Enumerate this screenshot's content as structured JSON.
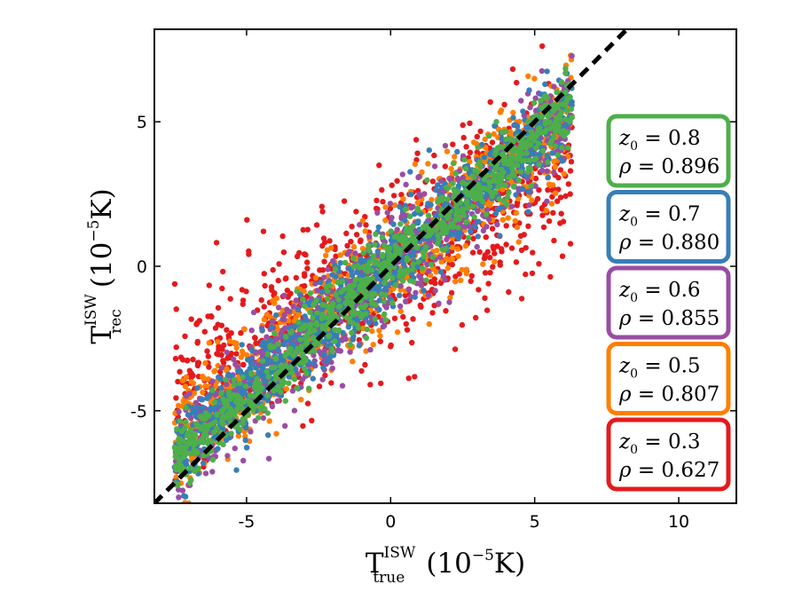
{
  "chart_data": {
    "type": "scatter",
    "title": "",
    "xlabel": {
      "base": "T",
      "sup": "ISW",
      "sub": "true",
      "unit": "(10",
      "unit_exp": "−5",
      "unit_end": "K)"
    },
    "ylabel": {
      "base": "T",
      "sup": "ISW",
      "sub": "rec",
      "unit": "(10",
      "unit_exp": "−5",
      "unit_end": "K)"
    },
    "xlim": [
      -8.2,
      12
    ],
    "ylim": [
      -8.2,
      8.2
    ],
    "xticks": [
      -5,
      0,
      5,
      10
    ],
    "xtick_labels": [
      "-5",
      "0",
      "5",
      "10"
    ],
    "yticks": [
      -5,
      0,
      5
    ],
    "ytick_labels": [
      "-5",
      "0",
      "5"
    ],
    "grid": false,
    "reference_line": {
      "style": "dashed",
      "color": "#000000",
      "points": [
        [
          -8.2,
          -8.2
        ],
        [
          8.2,
          8.2
        ]
      ]
    },
    "series": [
      {
        "name": "z0=0.3",
        "z0": "0.3",
        "rho": "0.627",
        "color": "#e41a1c",
        "slope": 0.627,
        "spread": 1.5,
        "xrange": [
          -7.5,
          6.3
        ]
      },
      {
        "name": "z0=0.5",
        "z0": "0.5",
        "rho": "0.807",
        "color": "#ff7f00",
        "slope": 0.807,
        "spread": 1.05,
        "xrange": [
          -7.5,
          6.3
        ]
      },
      {
        "name": "z0=0.6",
        "z0": "0.6",
        "rho": "0.855",
        "color": "#984ea3",
        "slope": 0.855,
        "spread": 0.9,
        "xrange": [
          -7.5,
          6.3
        ]
      },
      {
        "name": "z0=0.7",
        "z0": "0.7",
        "rho": "0.880",
        "color": "#377eb8",
        "slope": 0.88,
        "spread": 0.75,
        "xrange": [
          -7.5,
          6.3
        ]
      },
      {
        "name": "z0=0.8",
        "z0": "0.8",
        "rho": "0.896",
        "color": "#4daf4a",
        "slope": 0.896,
        "spread": 0.62,
        "xrange": [
          -7.5,
          6.3
        ]
      }
    ],
    "legend": {
      "placement": "right",
      "entries": [
        {
          "z0": "0.8",
          "rho": "0.896",
          "color": "#4daf4a"
        },
        {
          "z0": "0.7",
          "rho": "0.880",
          "color": "#377eb8"
        },
        {
          "z0": "0.6",
          "rho": "0.855",
          "color": "#984ea3"
        },
        {
          "z0": "0.5",
          "rho": "0.807",
          "color": "#ff7f00"
        },
        {
          "z0": "0.3",
          "rho": "0.627",
          "color": "#e41a1c"
        }
      ]
    }
  }
}
